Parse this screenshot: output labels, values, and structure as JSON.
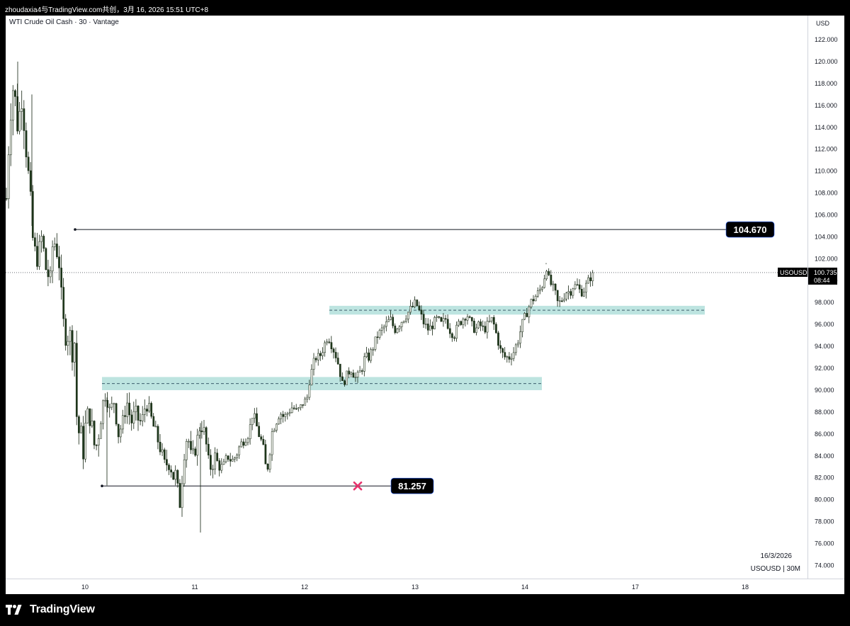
{
  "header": {
    "share_text": "zhoudaxia4与TradingView.com共创，3月 16, 2026 15:51 UTC+8"
  },
  "chart": {
    "symbol_title": "WTI Crude Oil Cash · 30 · Vantage"
  },
  "footer": {
    "brand": "TradingView"
  },
  "colors": {
    "candle_up": "#f2f4ee",
    "candle_down": "#1f3a1c",
    "candle_border": "#13230f",
    "zone_fill": "#b2dfdb",
    "cross": "#e8336d",
    "label_bg": "#000000"
  },
  "chart_data": {
    "type": "candlestick",
    "title": "WTI Crude Oil Cash · 30 · Vantage",
    "currency": "USD",
    "symbol": "USOUSD",
    "timeframe": "30M",
    "date_caption": "16/3/2026",
    "timeframe_caption": "USOUSD | 30M",
    "y_ticks": [
      "122.000",
      "120.000",
      "118.000",
      "116.000",
      "114.000",
      "112.000",
      "110.000",
      "108.000",
      "106.000",
      "104.000",
      "102.000",
      "100.000",
      "98.000",
      "96.000",
      "94.000",
      "92.000",
      "90.000",
      "88.000",
      "86.000",
      "84.000",
      "82.000",
      "80.000",
      "78.000",
      "76.000",
      "74.000"
    ],
    "ylim": [
      72.8,
      124.2
    ],
    "x_ticks": [
      "10",
      "11",
      "12",
      "13",
      "14",
      "17",
      "18"
    ],
    "current_price": {
      "label": "USOUSD",
      "value": "100.735",
      "countdown": "08:44",
      "price": 100.735
    },
    "levels": [
      {
        "value": 104.67,
        "label": "104.670"
      },
      {
        "value": 81.257,
        "label": "81.257"
      }
    ],
    "zones": [
      {
        "low": 90.0,
        "high": 91.2,
        "mid": 90.6
      },
      {
        "low": 96.9,
        "high": 97.7,
        "mid": 97.3
      }
    ],
    "path": [
      [
        0,
        107.5
      ],
      [
        5,
        115
      ],
      [
        10,
        118
      ],
      [
        16,
        114
      ],
      [
        22,
        117
      ],
      [
        28,
        112
      ],
      [
        33,
        108
      ],
      [
        38,
        103
      ],
      [
        44,
        102
      ],
      [
        50,
        104
      ],
      [
        56,
        101
      ],
      [
        62,
        100
      ],
      [
        66,
        104
      ],
      [
        70,
        103
      ],
      [
        74,
        102
      ],
      [
        78,
        98
      ],
      [
        82,
        95
      ],
      [
        86,
        95
      ],
      [
        90,
        95
      ],
      [
        94,
        93
      ],
      [
        97,
        95
      ],
      [
        100,
        85
      ],
      [
        104,
        87
      ],
      [
        108,
        84
      ],
      [
        112,
        87
      ],
      [
        116,
        88
      ],
      [
        120,
        87
      ],
      [
        124,
        85
      ],
      [
        128,
        85
      ],
      [
        134,
        88
      ],
      [
        140,
        90
      ],
      [
        146,
        88
      ],
      [
        152,
        89
      ],
      [
        158,
        86
      ],
      [
        164,
        87
      ],
      [
        170,
        89
      ],
      [
        176,
        87
      ],
      [
        182,
        88
      ],
      [
        188,
        87
      ],
      [
        193,
        87.5
      ],
      [
        197,
        89
      ],
      [
        202,
        88
      ],
      [
        206,
        87
      ],
      [
        211,
        86
      ],
      [
        216,
        85
      ],
      [
        220,
        84
      ],
      [
        224,
        83
      ],
      [
        228,
        83.5
      ],
      [
        232,
        83
      ],
      [
        236,
        82
      ],
      [
        240,
        82.5
      ],
      [
        244,
        79
      ],
      [
        248,
        82
      ],
      [
        252,
        85
      ],
      [
        256,
        86
      ],
      [
        260,
        84
      ],
      [
        264,
        84
      ],
      [
        268,
        85
      ],
      [
        274,
        87
      ],
      [
        280,
        86
      ],
      [
        286,
        83
      ],
      [
        290,
        83
      ],
      [
        294,
        84
      ],
      [
        300,
        83
      ],
      [
        306,
        83
      ],
      [
        312,
        84
      ],
      [
        318,
        83.5
      ],
      [
        324,
        84
      ],
      [
        330,
        85
      ],
      [
        336,
        85.5
      ],
      [
        342,
        86
      ],
      [
        348,
        88
      ],
      [
        352,
        87
      ],
      [
        356,
        86
      ],
      [
        362,
        85
      ],
      [
        366,
        83
      ],
      [
        370,
        83
      ],
      [
        374,
        86
      ],
      [
        380,
        87
      ],
      [
        386,
        88
      ],
      [
        392,
        87.5
      ],
      [
        398,
        88
      ],
      [
        404,
        88.5
      ],
      [
        410,
        88
      ],
      [
        416,
        88.5
      ],
      [
        420,
        89
      ],
      [
        424,
        89
      ],
      [
        428,
        91
      ],
      [
        432,
        92
      ],
      [
        436,
        93
      ],
      [
        442,
        93
      ],
      [
        448,
        94
      ],
      [
        454,
        95
      ],
      [
        460,
        94
      ],
      [
        466,
        93
      ],
      [
        470,
        92
      ],
      [
        474,
        90.5
      ],
      [
        478,
        91
      ],
      [
        482,
        91.5
      ],
      [
        486,
        92
      ],
      [
        490,
        91.5
      ],
      [
        494,
        91
      ],
      [
        498,
        91.5
      ],
      [
        502,
        92
      ],
      [
        506,
        93
      ],
      [
        512,
        93
      ],
      [
        518,
        94
      ],
      [
        524,
        95
      ],
      [
        530,
        95.5
      ],
      [
        536,
        96
      ],
      [
        542,
        96.5
      ],
      [
        548,
        95.5
      ],
      [
        554,
        96
      ],
      [
        560,
        96.5
      ],
      [
        566,
        97
      ],
      [
        572,
        97.5
      ],
      [
        578,
        98
      ],
      [
        584,
        97
      ],
      [
        590,
        96
      ],
      [
        596,
        95.5
      ],
      [
        602,
        96
      ],
      [
        608,
        96.5
      ],
      [
        614,
        96
      ],
      [
        620,
        96.5
      ],
      [
        626,
        95.5
      ],
      [
        632,
        95
      ],
      [
        638,
        96
      ],
      [
        644,
        96.5
      ],
      [
        650,
        97
      ],
      [
        656,
        96
      ],
      [
        662,
        95.5
      ],
      [
        668,
        96
      ],
      [
        674,
        95.5
      ],
      [
        680,
        96
      ],
      [
        686,
        96.5
      ],
      [
        692,
        95
      ],
      [
        698,
        93.5
      ],
      [
        704,
        93
      ],
      [
        710,
        93
      ],
      [
        716,
        93.5
      ],
      [
        722,
        94.5
      ],
      [
        728,
        96
      ],
      [
        734,
        97
      ],
      [
        740,
        98
      ],
      [
        746,
        98.5
      ],
      [
        752,
        99
      ],
      [
        756,
        99.5
      ],
      [
        760,
        100.5
      ],
      [
        762,
        101.5
      ],
      [
        766,
        100
      ],
      [
        770,
        99.5
      ],
      [
        774,
        99
      ],
      [
        778,
        98
      ],
      [
        782,
        98
      ],
      [
        786,
        98.5
      ],
      [
        790,
        99
      ],
      [
        796,
        99
      ],
      [
        800,
        99.5
      ],
      [
        806,
        99.5
      ],
      [
        810,
        99
      ],
      [
        814,
        99
      ],
      [
        818,
        99.5
      ],
      [
        822,
        100
      ],
      [
        826,
        100.5
      ],
      [
        829,
        100.7
      ]
    ]
  }
}
